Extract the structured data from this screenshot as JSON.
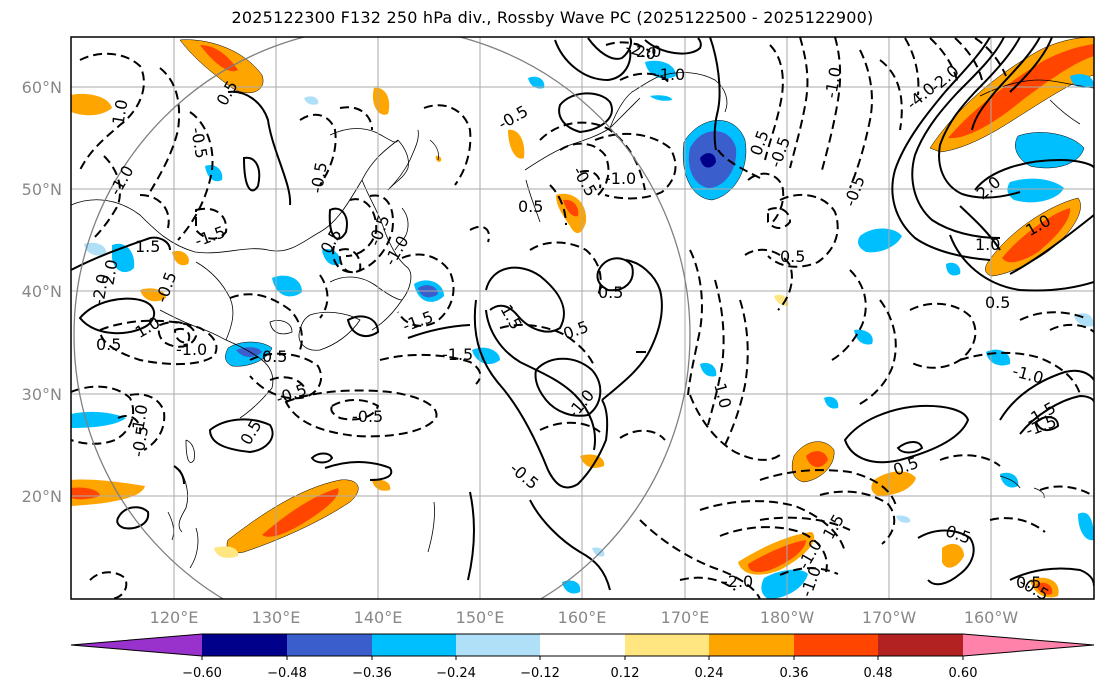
{
  "title": "2025122300 F132 250 hPa div., Rossby Wave PC (2025122500 - 2025122900)",
  "lat_labels": [
    "60°N",
    "50°N",
    "40°N",
    "30°N",
    "20°N"
  ],
  "lon_labels": [
    "120°E",
    "130°E",
    "140°E",
    "150°E",
    "160°E",
    "170°E",
    "180°W",
    "170°W",
    "160°W"
  ],
  "colorbar": {
    "labels": [
      "−0.60",
      "−0.48",
      "−0.36",
      "−0.24",
      "−0.12",
      "0.12",
      "0.24",
      "0.36",
      "0.48",
      "0.60"
    ],
    "colors": [
      "#9932cc",
      "#00008b",
      "#3a5fcd",
      "#00bfff",
      "#b0e0f8",
      "#ffffff",
      "#ffe680",
      "#ffa500",
      "#ff4500",
      "#b22222",
      "#ff82ab"
    ]
  },
  "contour_labels": [
    "0.5",
    "-0.5",
    "1.0",
    "-1.0",
    "1.5",
    "-1.5",
    "2.0",
    "-2.0",
    "-0.5",
    "0.5",
    "-1.0",
    "1.0",
    "-0.5",
    "0.5",
    "-0.5",
    "-1.0",
    "0.5",
    "-0.5",
    "0.5",
    "-0.5",
    "1.0",
    "2.0",
    "-2.0",
    "-1.0",
    "-0.5",
    "0.5",
    "-0.5",
    "-1.0",
    "0.5",
    "0.5",
    "1.5",
    "-1.5",
    "-1.5",
    "-0.5",
    "-1.0",
    "-0.5",
    "0.5",
    "-0.5",
    "-1.0",
    "0.5",
    "-0.5",
    "1.0",
    "0.5",
    "-2.0",
    "-1.0",
    "0.5",
    "1.5",
    "-1.0",
    "-1.0",
    "-1.5",
    "-1.5",
    "0.5",
    "1.0",
    "2.0",
    "-0.5",
    "0.5",
    "-4.0",
    "-2.0",
    "1.0"
  ]
}
